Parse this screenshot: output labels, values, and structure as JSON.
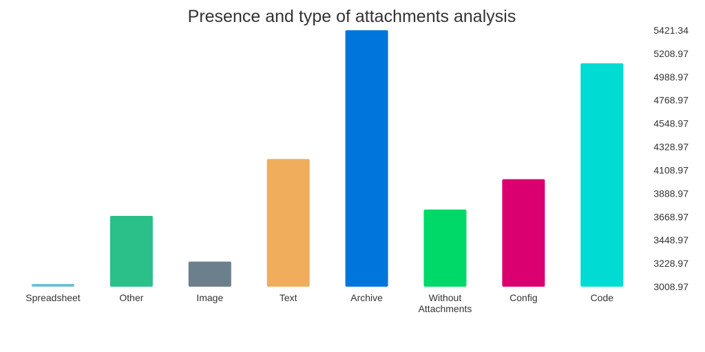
{
  "chart_data": {
    "type": "bar",
    "title": "Presence and type of attachments analysis",
    "xlabel": "",
    "ylabel": "",
    "categories": [
      "Spreadsheet",
      "Other",
      "Image",
      "Text",
      "Archive",
      "Without Attachments",
      "Config",
      "Code"
    ],
    "category_label_lines": [
      [
        "Spreadsheet"
      ],
      [
        "Other"
      ],
      [
        "Image"
      ],
      [
        "Text"
      ],
      [
        "Archive"
      ],
      [
        "Without",
        "Attachments"
      ],
      [
        "Config"
      ],
      [
        "Code"
      ]
    ],
    "values": [
      3020,
      3675,
      3245,
      4210,
      5421.34,
      3735,
      4020,
      5110
    ],
    "colors": [
      "#6ec1d2",
      "#2bc08a",
      "#6c7f8c",
      "#f0ad5c",
      "#0076dc",
      "#00d968",
      "#db0070",
      "#00dbd4"
    ],
    "ylim": [
      3008.97,
      5421.34
    ],
    "yticks": [
      "5421.34",
      "5208.97",
      "4988.97",
      "4768.97",
      "4548.97",
      "4328.97",
      "4108.97",
      "3888.97",
      "3668.97",
      "3448.97",
      "3228.97",
      "3008.97"
    ],
    "y_axis_side": "right",
    "grid": false,
    "legend": "none"
  }
}
